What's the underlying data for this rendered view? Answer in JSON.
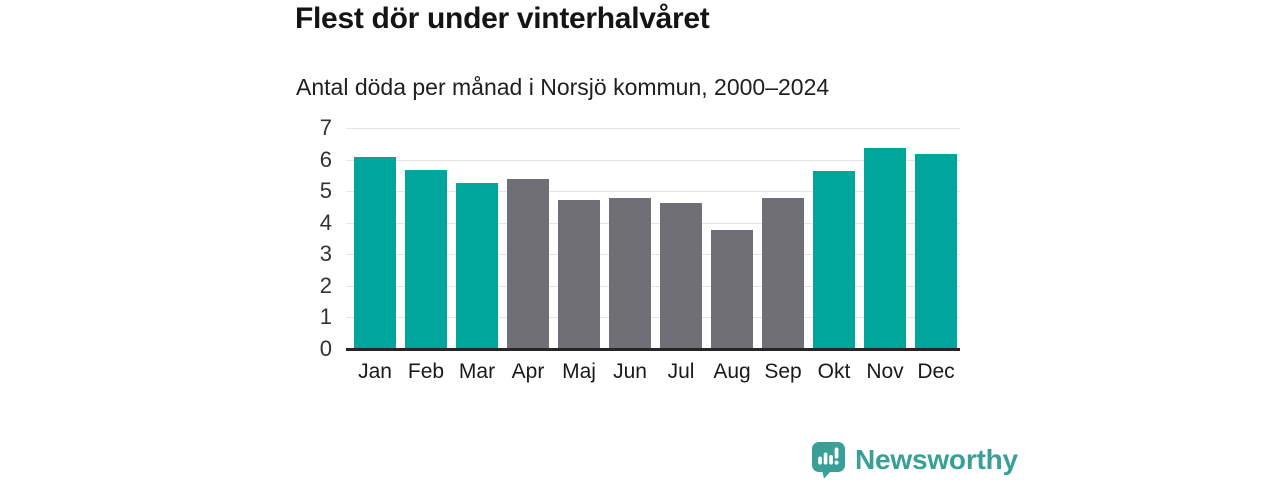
{
  "header": {
    "title": "Flest dör under vinterhalvåret",
    "subtitle": "Antal döda per månad i Norsjö kommun, 2000–2024"
  },
  "chart_data": {
    "type": "bar",
    "categories": [
      "Jan",
      "Feb",
      "Mar",
      "Apr",
      "Maj",
      "Jun",
      "Jul",
      "Aug",
      "Sep",
      "Okt",
      "Nov",
      "Dec"
    ],
    "values": [
      6.07,
      5.68,
      5.26,
      5.38,
      4.72,
      4.78,
      4.62,
      3.78,
      4.77,
      5.65,
      6.37,
      6.17
    ],
    "bar_colors": [
      "teal",
      "teal",
      "teal",
      "gray",
      "gray",
      "gray",
      "gray",
      "gray",
      "gray",
      "teal",
      "teal",
      "teal"
    ],
    "title": "Flest dör under vinterhalvåret",
    "subtitle": "Antal döda per månad i Norsjö kommun, 2000–2024",
    "xlabel": "",
    "ylabel": "",
    "ylim": [
      0,
      7
    ],
    "yticks": [
      0,
      1,
      2,
      3,
      4,
      5,
      6,
      7
    ],
    "grid": true,
    "legend": false,
    "colors": {
      "teal": "#00a69b",
      "gray": "#706f75",
      "grid": "#e5e5e5",
      "axis": "#262626",
      "tick_label": "#333333"
    }
  },
  "footer": {
    "brand": "Newsworthy",
    "logo_icon": "bar-chart-speech-bubble-icon",
    "brand_color": "#38a096"
  }
}
